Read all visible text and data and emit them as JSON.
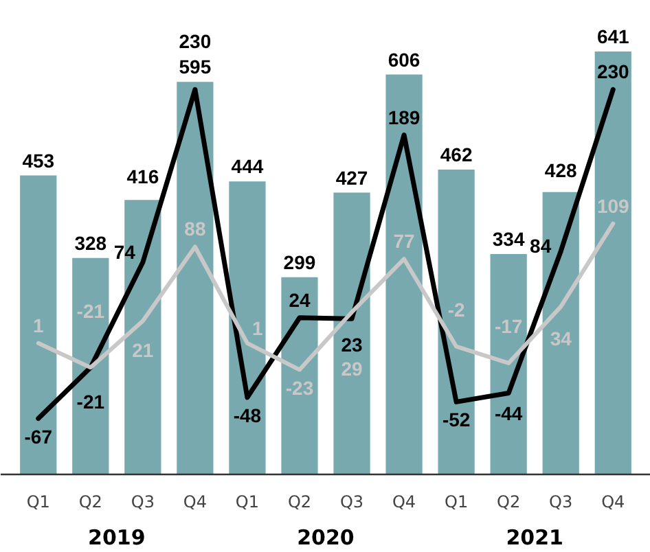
{
  "chart_data": {
    "type": "bar",
    "categories": [
      "Q1",
      "Q2",
      "Q3",
      "Q4",
      "Q1",
      "Q2",
      "Q3",
      "Q4",
      "Q1",
      "Q2",
      "Q3",
      "Q4"
    ],
    "annotations": [
      "2019",
      "2020",
      "2021"
    ],
    "series": [
      {
        "color": "#78a9ae",
        "values": [
          453,
          328,
          416,
          595,
          444,
          299,
          427,
          606,
          462,
          334,
          428,
          641
        ]
      },
      {
        "type": "line",
        "axis": "y2",
        "color": "#000000",
        "values": [
          -67,
          -21,
          74,
          230,
          -48,
          24,
          23,
          189,
          -52,
          -44,
          84,
          230
        ]
      },
      {
        "type": "line",
        "axis": "y2",
        "color": "#c8c8c8",
        "values": [
          1,
          -21,
          21,
          88,
          1,
          -23,
          29,
          77,
          -2,
          -17,
          34,
          109
        ]
      }
    ],
    "tick_labels": "x",
    "data_labels": true
  }
}
